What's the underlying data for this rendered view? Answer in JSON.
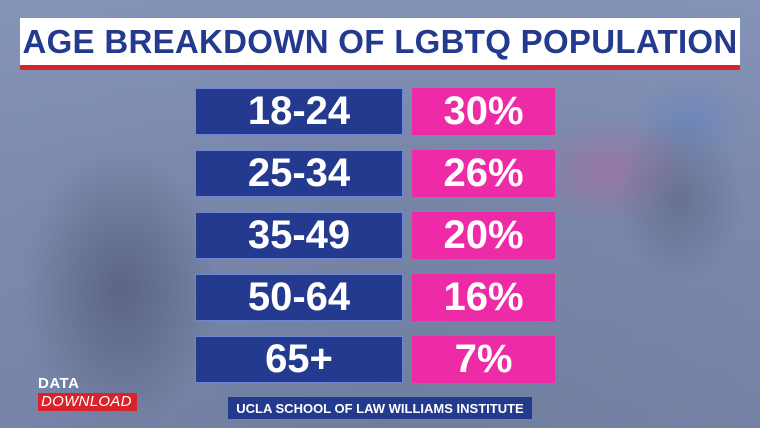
{
  "chart_data": {
    "type": "table",
    "title": "AGE BREAKDOWN OF LGBTQ POPULATION",
    "categories": [
      "18-24",
      "25-34",
      "35-49",
      "50-64",
      "65+"
    ],
    "values": [
      30,
      26,
      20,
      16,
      7
    ],
    "value_labels": [
      "30%",
      "26%",
      "20%",
      "16%",
      "7%"
    ],
    "source": "UCLA SCHOOL OF LAW WILLIAMS INSTITUTE"
  },
  "branding": {
    "logo_line1": "DATA",
    "logo_line2": "DOWNLOAD"
  },
  "colors": {
    "title_text": "#243a8f",
    "accent_red": "#d8232a",
    "age_box": "#233a8e",
    "pct_box": "#ee2ba6"
  }
}
